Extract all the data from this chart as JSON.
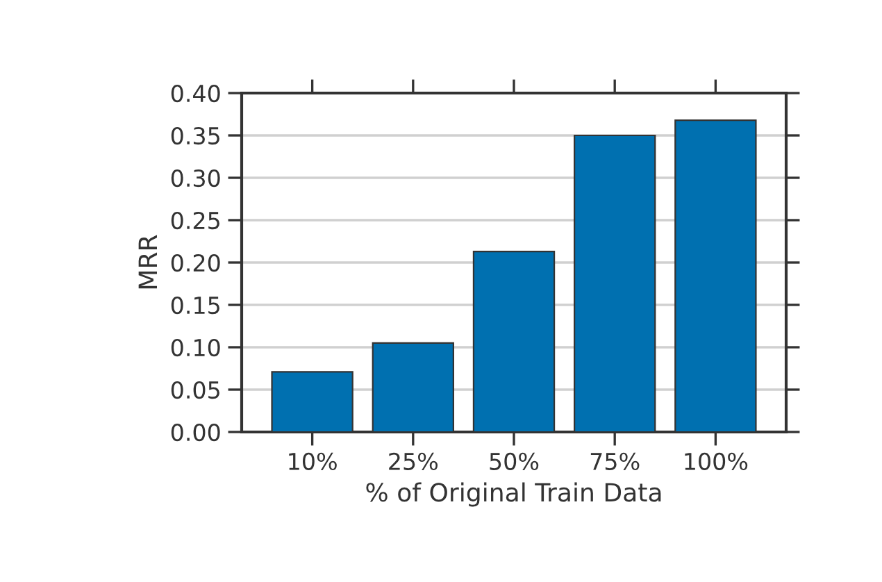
{
  "chart_data": {
    "type": "bar",
    "xlabel": "% of Original Train Data",
    "ylabel": "MRR",
    "categories": [
      "10%",
      "25%",
      "50%",
      "75%",
      "100%"
    ],
    "values": [
      0.071,
      0.105,
      0.213,
      0.35,
      0.368
    ],
    "color": "#0070b0",
    "ylim": [
      0,
      0.4
    ],
    "yticks": [
      {
        "value": 0,
        "label": "0.00"
      },
      {
        "value": 0.05,
        "label": "0.05"
      },
      {
        "value": 0.1,
        "label": "0.10"
      },
      {
        "value": 0.15,
        "label": "0.15"
      },
      {
        "value": 0.2,
        "label": "0.20"
      },
      {
        "value": 0.25,
        "label": "0.25"
      },
      {
        "value": 0.3,
        "label": "0.30"
      },
      {
        "value": 0.35,
        "label": "0.35"
      },
      {
        "value": 0.4,
        "label": "0.40"
      }
    ],
    "grid": "y"
  }
}
